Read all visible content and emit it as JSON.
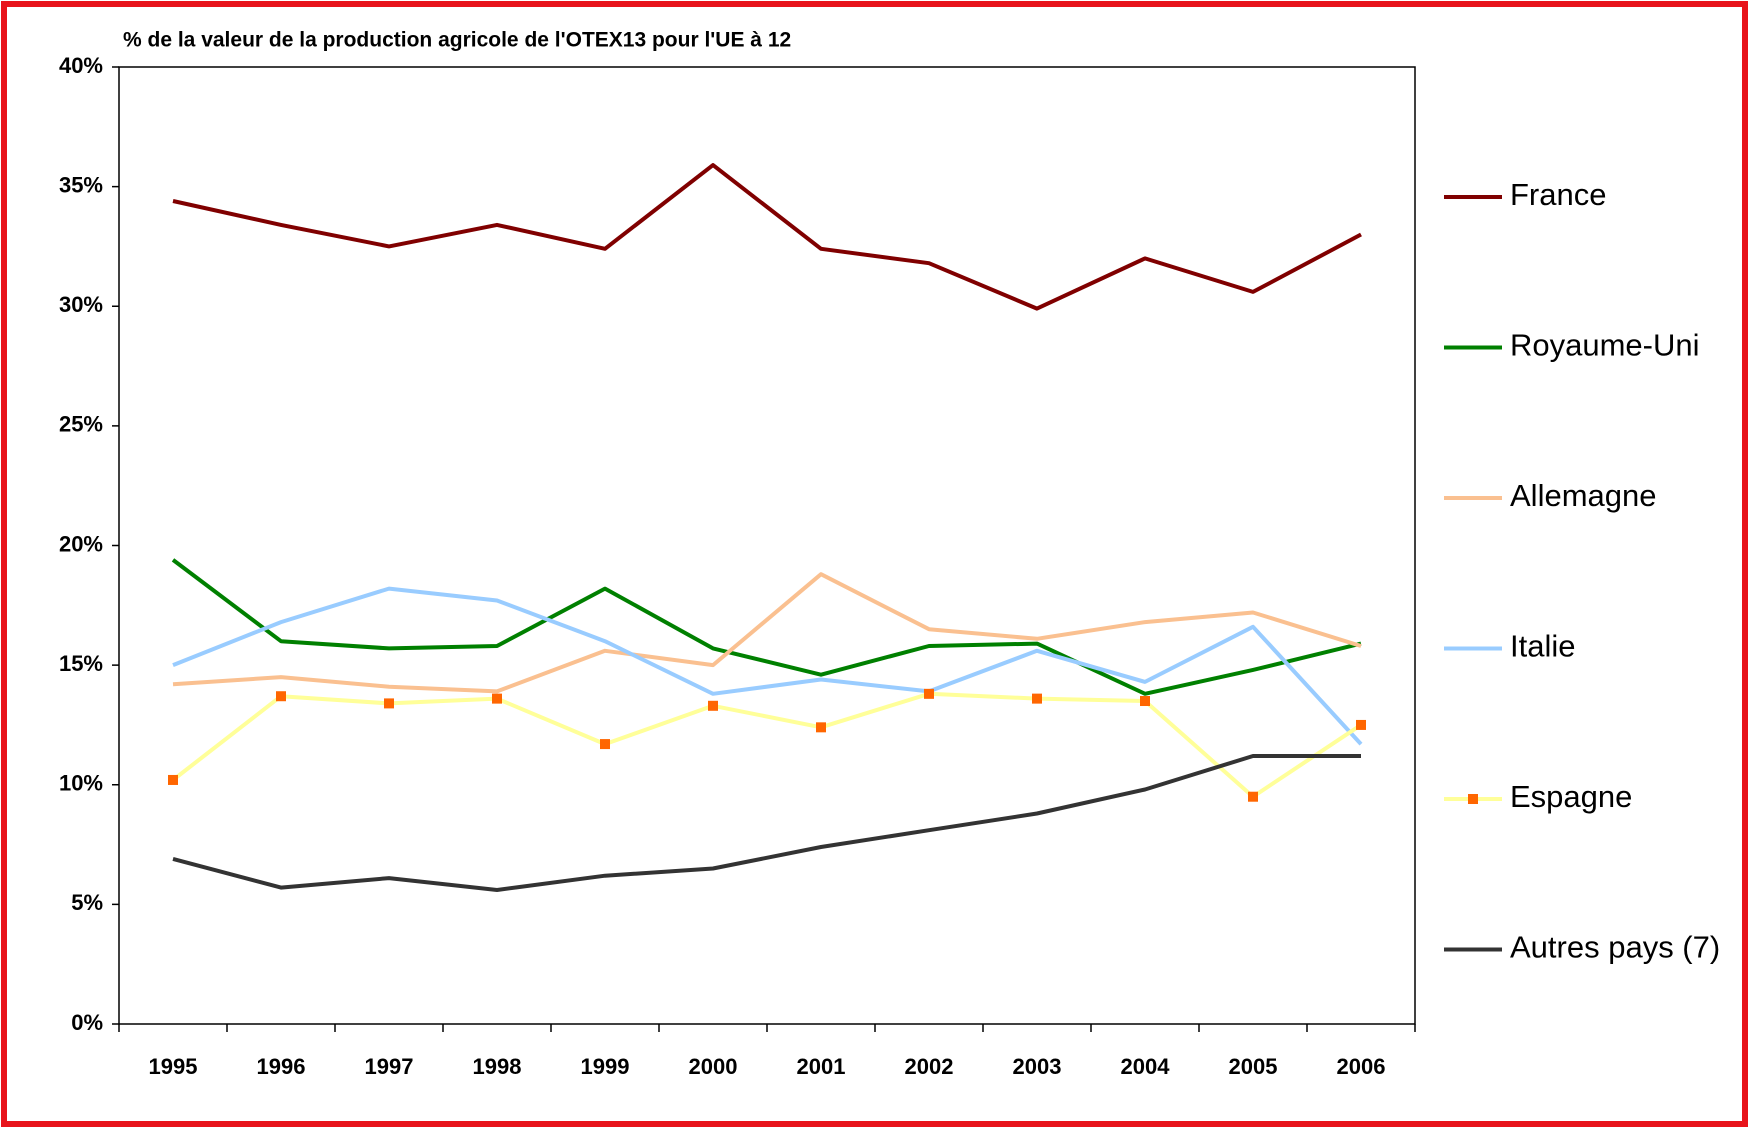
{
  "chart_data": {
    "type": "line",
    "title": "% de la valeur de la production agricole de l'OTEX13 pour l'UE à 12",
    "categories": [
      "1995",
      "1996",
      "1997",
      "1998",
      "1999",
      "2000",
      "2001",
      "2002",
      "2003",
      "2004",
      "2005",
      "2006"
    ],
    "series": [
      {
        "name": "France",
        "color": "#800000",
        "values": [
          34.4,
          33.4,
          32.5,
          33.4,
          32.4,
          35.9,
          32.4,
          31.8,
          29.9,
          32.0,
          30.6,
          33.0
        ]
      },
      {
        "name": "Royaume-Uni",
        "color": "#008000",
        "values": [
          19.4,
          16.0,
          15.7,
          15.8,
          18.2,
          15.7,
          14.6,
          15.8,
          15.9,
          13.8,
          14.8,
          15.9
        ]
      },
      {
        "name": "Allemagne",
        "color": "#fac090",
        "values": [
          14.2,
          14.5,
          14.1,
          13.9,
          15.6,
          15.0,
          18.8,
          16.5,
          16.1,
          16.8,
          17.2,
          15.8
        ]
      },
      {
        "name": "Italie",
        "color": "#99ccff",
        "values": [
          15.0,
          16.8,
          18.2,
          17.7,
          16.0,
          13.8,
          14.4,
          13.9,
          15.6,
          14.3,
          16.6,
          11.7
        ]
      },
      {
        "name": "Espagne",
        "color": "#ffff99",
        "marker_color": "#ff6600",
        "values": [
          10.2,
          13.7,
          13.4,
          13.6,
          11.7,
          13.3,
          12.4,
          13.8,
          13.6,
          13.5,
          9.5,
          12.5
        ]
      },
      {
        "name": "Autres pays (7)",
        "color": "#333333",
        "values": [
          6.9,
          5.7,
          6.1,
          5.6,
          6.2,
          6.5,
          7.4,
          8.1,
          8.8,
          9.8,
          11.2,
          11.2
        ]
      }
    ],
    "ylim": [
      0,
      40
    ],
    "yticks": [
      {
        "value": 0,
        "label": "0%"
      },
      {
        "value": 5,
        "label": "5%"
      },
      {
        "value": 10,
        "label": "10%"
      },
      {
        "value": 15,
        "label": "15%"
      },
      {
        "value": 20,
        "label": "20%"
      },
      {
        "value": 25,
        "label": "25%"
      },
      {
        "value": 30,
        "label": "30%"
      },
      {
        "value": 35,
        "label": "35%"
      },
      {
        "value": 40,
        "label": "40%"
      }
    ],
    "grid": false,
    "legend": "right"
  }
}
